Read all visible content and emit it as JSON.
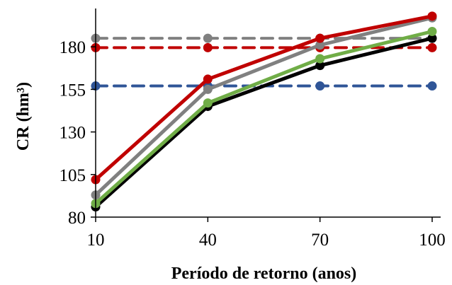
{
  "chart_data": {
    "type": "line",
    "title": "",
    "xlabel": "Período de retorno (anos)",
    "ylabel": "CR (hm³)",
    "categories": [
      "10",
      "40",
      "70",
      "100"
    ],
    "ylim": [
      80,
      200
    ],
    "yticks": [
      80,
      105,
      130,
      155,
      180
    ],
    "grid": false,
    "legend": "none",
    "series": [
      {
        "style": "solid",
        "color": "#c00000",
        "values": [
          102,
          161,
          185,
          198
        ]
      },
      {
        "style": "solid",
        "color": "#808080",
        "values": [
          93,
          155,
          181,
          197
        ]
      },
      {
        "style": "solid",
        "color": "#70ad47",
        "values": [
          88,
          147,
          173,
          189
        ]
      },
      {
        "style": "solid",
        "color": "#000000",
        "values": [
          86,
          145,
          169,
          185
        ]
      },
      {
        "style": "dashed",
        "color": "#808080",
        "values": [
          185,
          185,
          185,
          185
        ]
      },
      {
        "style": "dashed",
        "color": "#c00000",
        "values": [
          179.5,
          179.5,
          179.5,
          179.5
        ]
      },
      {
        "style": "dashed",
        "color": "#2f5597",
        "values": [
          157,
          157,
          157,
          157
        ]
      }
    ]
  }
}
